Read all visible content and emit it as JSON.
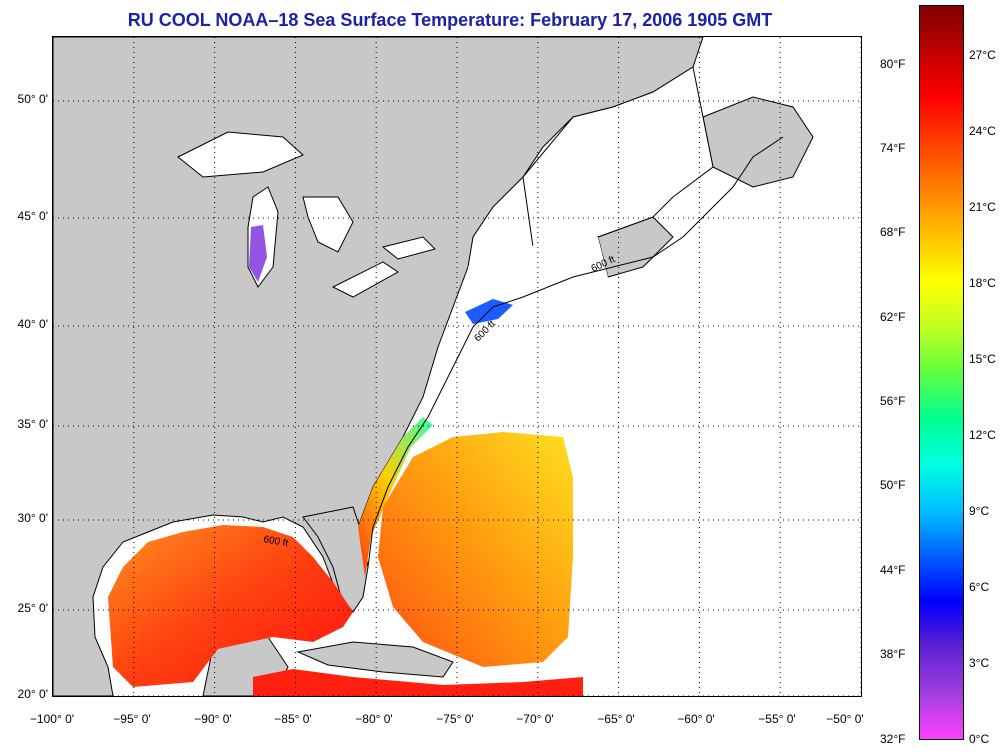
{
  "title": "RU COOL  NOAA–18  Sea Surface Temperature:  February 17, 2006 1905 GMT",
  "map": {
    "lon_range": [
      -100,
      -50
    ],
    "lat_range": [
      20,
      52.5
    ],
    "grid": "dotted",
    "land_color": "#c8c8c8",
    "water_no_data_color": "#ffffff",
    "lat_labels": [
      "20° 0'",
      "25° 0'",
      "30° 0'",
      "35° 0'",
      "40° 0'",
      "45° 0'",
      "50° 0'"
    ],
    "lon_labels": [
      "−100° 0'",
      "−95° 0'",
      "−90° 0'",
      "−85° 0'",
      "−80° 0'",
      "−75° 0'",
      "−70° 0'",
      "−65° 0'",
      "−60° 0'",
      "−55° 0'",
      "−50° 0'"
    ],
    "isobath_label": "600 ft"
  },
  "colorbar": {
    "fahrenheit_labels": [
      "32°F",
      "38°F",
      "44°F",
      "50°F",
      "56°F",
      "62°F",
      "68°F",
      "74°F",
      "80°F"
    ],
    "celsius_labels": [
      "0°C",
      "3°C",
      "6°C",
      "9°C",
      "12°C",
      "15°C",
      "18°C",
      "21°C",
      "24°C",
      "27°C"
    ],
    "colors": [
      "#ff40ff",
      "#a040e0",
      "#6020d0",
      "#0000ff",
      "#0060ff",
      "#00c0ff",
      "#00ffe0",
      "#00ff90",
      "#60ff40",
      "#c0ff20",
      "#ffff00",
      "#ffc000",
      "#ff8000",
      "#ff4000",
      "#ff0000",
      "#c00000",
      "#800000"
    ]
  }
}
